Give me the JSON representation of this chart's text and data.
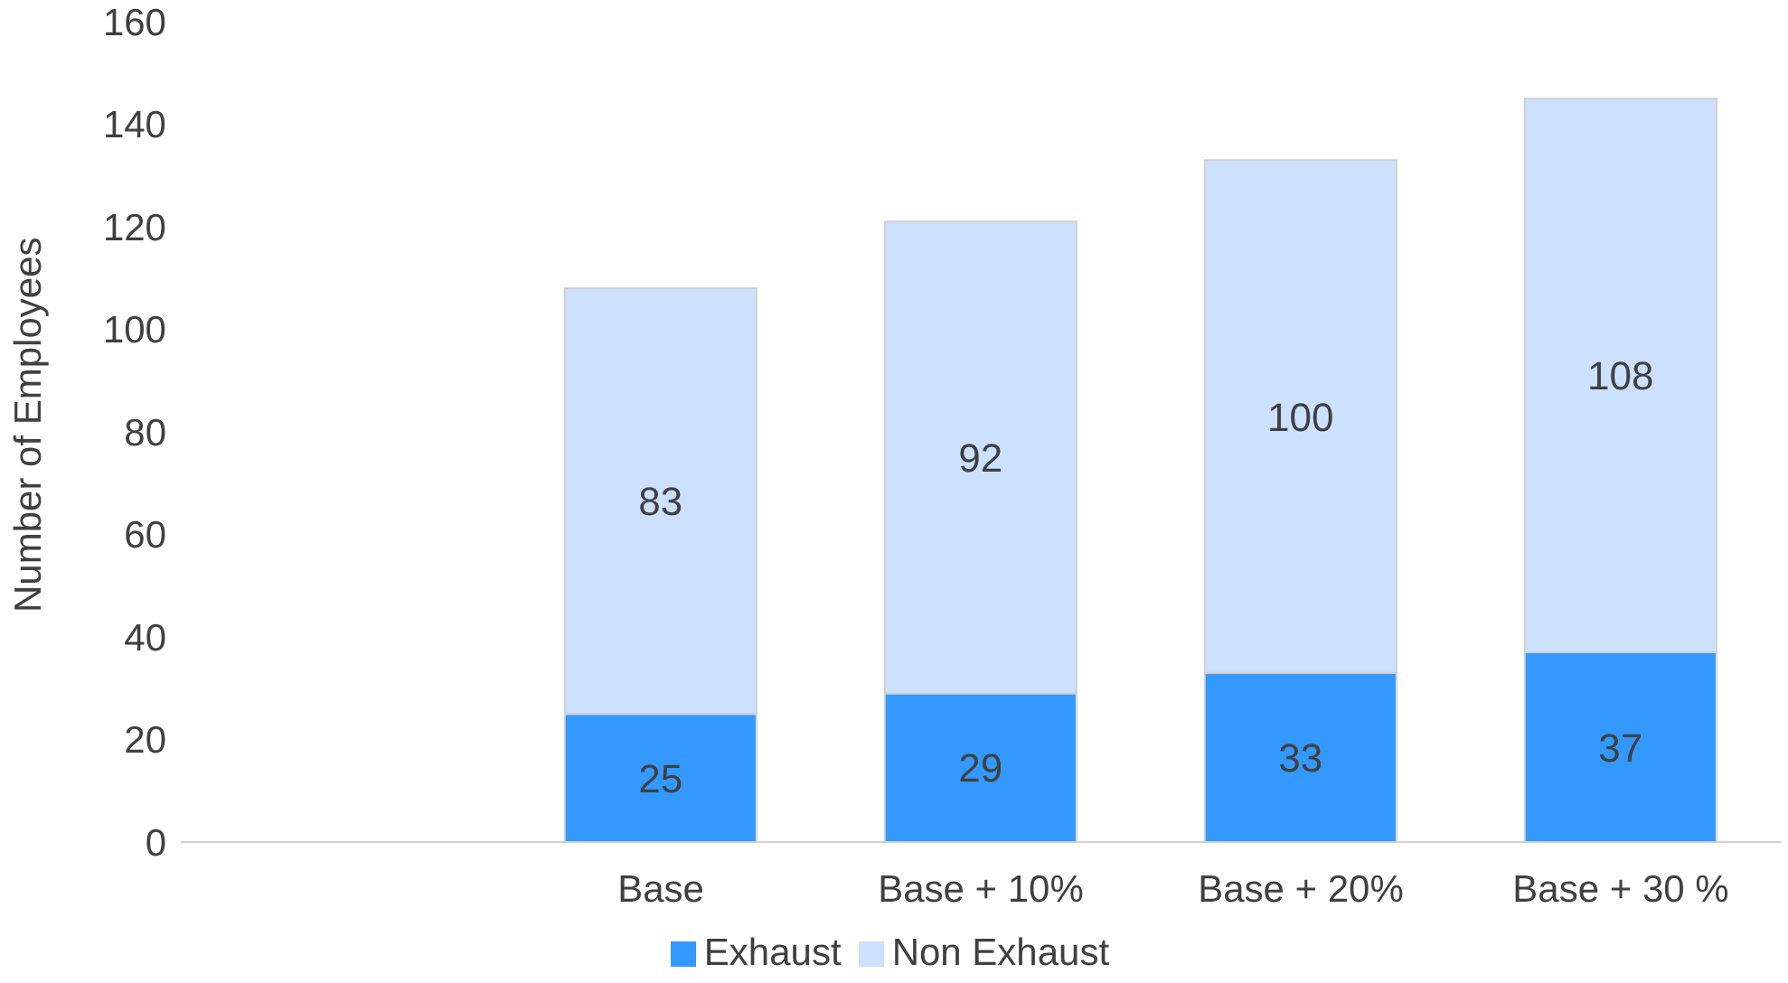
{
  "chart_data": {
    "type": "bar",
    "stacked": true,
    "ylabel": "Number of Employees",
    "categories": [
      null,
      "Base",
      "Base + 10%",
      "Base + 20%",
      "Base + 30 %"
    ],
    "series": [
      {
        "name": "Exhaust",
        "color": "#3399ff",
        "values": [
          null,
          25,
          29,
          33,
          37
        ]
      },
      {
        "name": "Non Exhaust",
        "color": "#cce0ff",
        "values": [
          null,
          83,
          92,
          100,
          108
        ]
      }
    ],
    "ylim": [
      0,
      160
    ],
    "yticks": [
      0,
      20,
      40,
      60,
      80,
      100,
      120,
      140,
      160
    ],
    "grid": false,
    "legend": "bottom",
    "data_labels": true
  }
}
